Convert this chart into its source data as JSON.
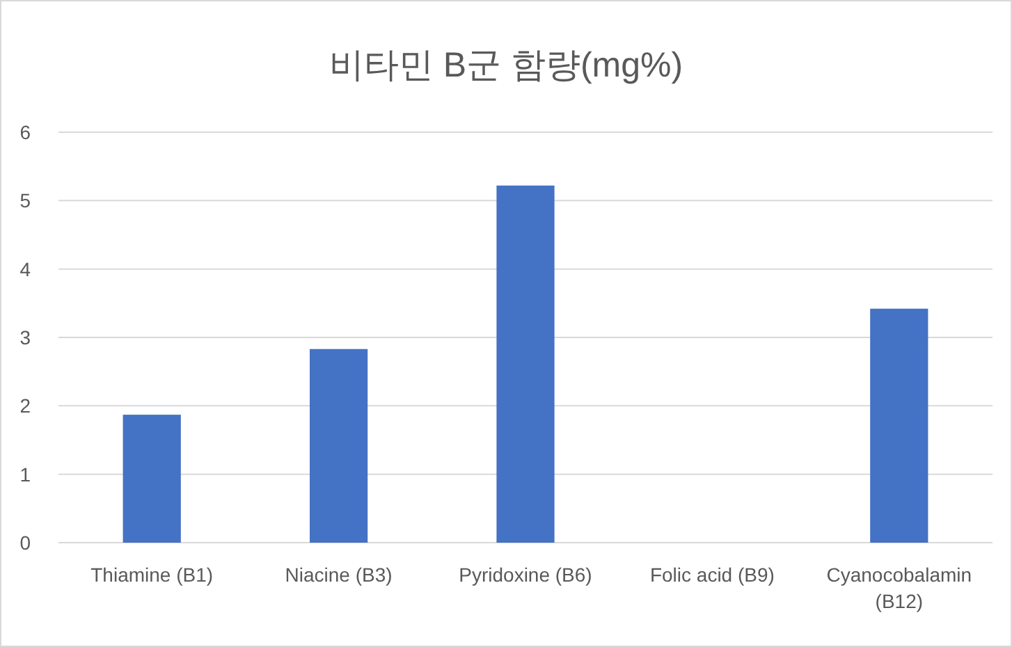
{
  "chart_data": {
    "type": "bar",
    "title": "비타민 B군 함량(mg%)",
    "categories": [
      "Thiamine (B1)",
      "Niacine (B3)",
      "Pyridoxine (B6)",
      "Folic acid (B9)",
      "Cyanocobalamin (B12)"
    ],
    "values": [
      1.87,
      2.83,
      5.22,
      0,
      3.42
    ],
    "color": "#4472c4",
    "ylim": [
      0,
      6
    ],
    "yticks": [
      0,
      1,
      2,
      3,
      4,
      5,
      6
    ],
    "grid": "y"
  }
}
